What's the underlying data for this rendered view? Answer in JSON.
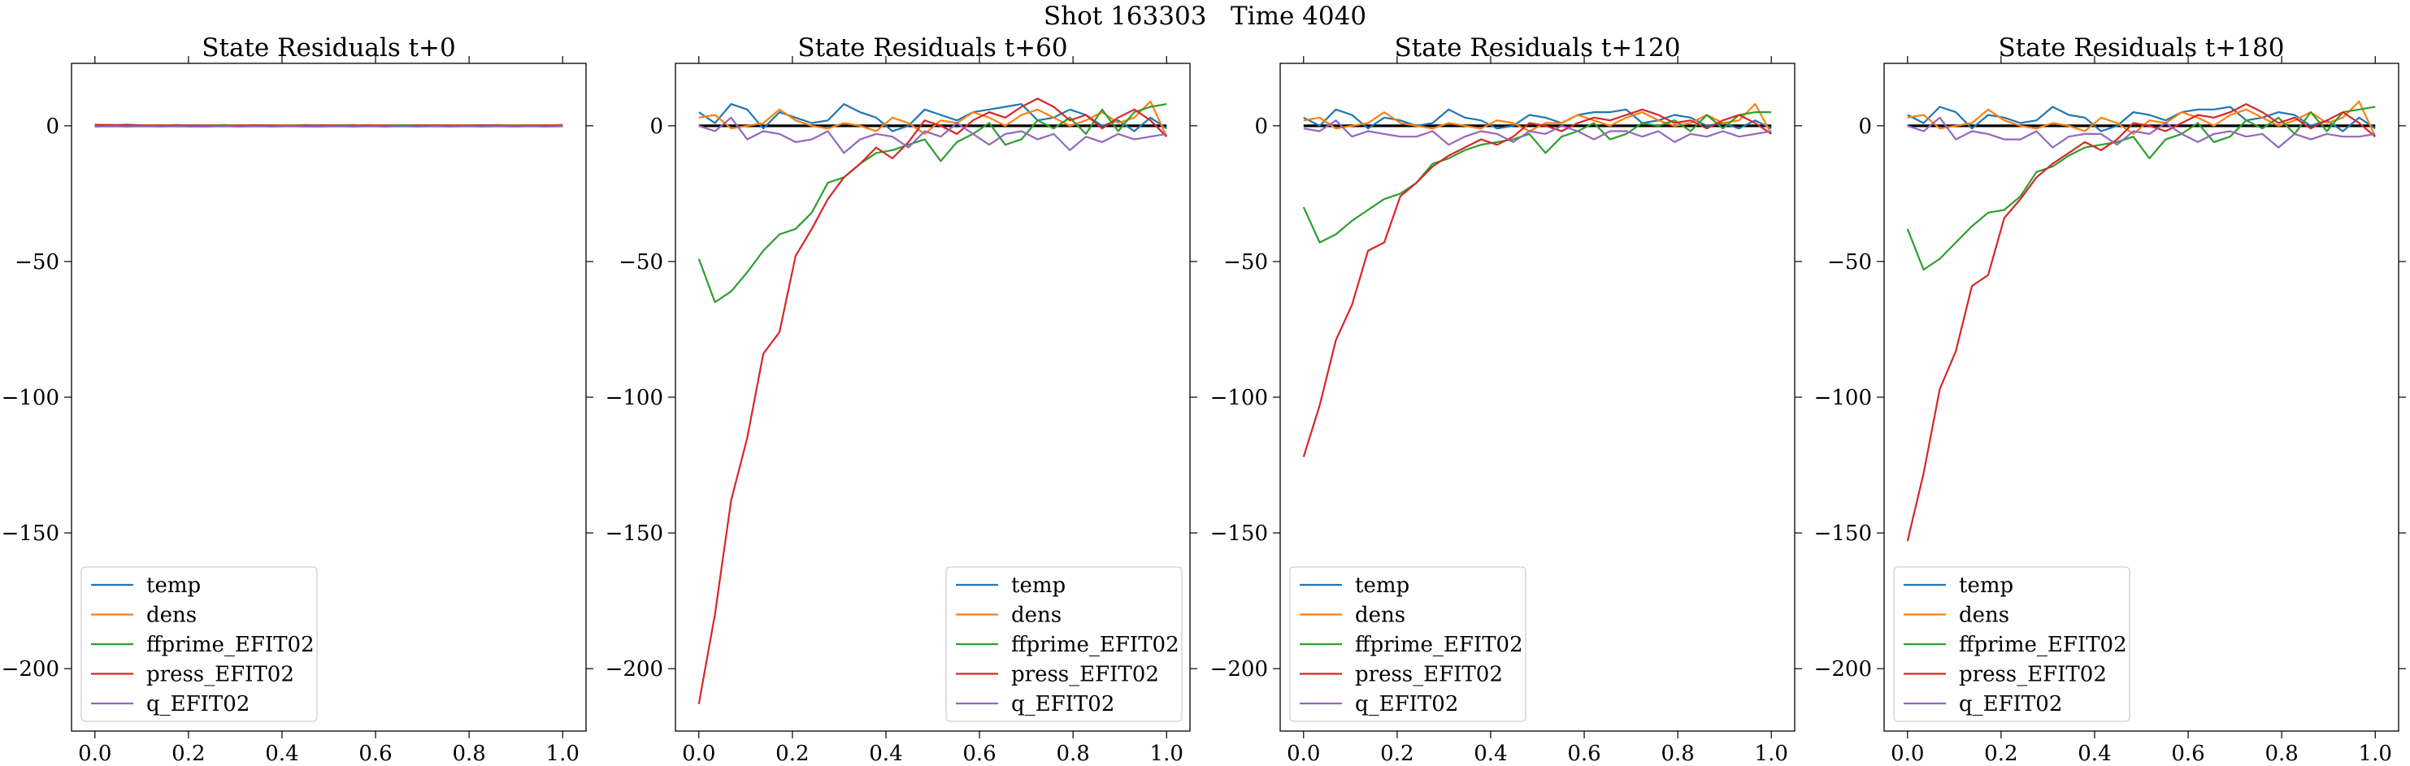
{
  "suptitle": "Shot 163303   Time 4040",
  "colors": {
    "temp": "#1f77b4",
    "dens": "#ff7f0e",
    "ffprime_EFIT02": "#2ca02c",
    "press_EFIT02": "#d62728",
    "q_EFIT02": "#9467bd",
    "zero_line": "#000000"
  },
  "chart_data": [
    {
      "type": "line",
      "title": "State Residuals t+0",
      "xlabel": "",
      "ylabel": "",
      "xlim": [
        -0.05,
        1.05
      ],
      "ylim": [
        -223,
        23
      ],
      "xticks": [
        "0.0",
        "0.2",
        "0.4",
        "0.6",
        "0.8",
        "1.0"
      ],
      "yticks": [
        "0",
        "−50",
        "−100",
        "−150",
        "−200"
      ],
      "legend_position": "lower-left",
      "x": [
        0.0,
        0.0345,
        0.069,
        0.1034,
        0.1379,
        0.1724,
        0.2069,
        0.2414,
        0.2759,
        0.3103,
        0.3448,
        0.3793,
        0.4138,
        0.4483,
        0.4828,
        0.5172,
        0.5517,
        0.5862,
        0.6207,
        0.6552,
        0.6897,
        0.7241,
        0.7586,
        0.7931,
        0.8276,
        0.8621,
        0.8966,
        0.931,
        0.9655,
        1.0
      ],
      "zero_line": true,
      "series": [
        {
          "name": "temp",
          "values": [
            0.3,
            0.2,
            0.4,
            0.2,
            0.1,
            0.3,
            0.2,
            0.2,
            0.3,
            0.1,
            0.2,
            0.2,
            0.1,
            0.3,
            0.2,
            0.2,
            0.3,
            0.2,
            0.1,
            0.2,
            0.3,
            0.2,
            0.2,
            0.1,
            0.2,
            0.3,
            0.2,
            0.2,
            0.1,
            0.3
          ]
        },
        {
          "name": "dens",
          "values": [
            0.2,
            0.3,
            0.1,
            0.2,
            0.3,
            0.2,
            0.1,
            0.2,
            0.2,
            0.3,
            0.1,
            0.2,
            0.3,
            0.2,
            0.2,
            0.1,
            0.2,
            0.3,
            0.2,
            0.1,
            0.2,
            0.2,
            0.3,
            0.2,
            0.1,
            0.2,
            0.2,
            0.3,
            0.2,
            0.4
          ]
        },
        {
          "name": "ffprime_EFIT02",
          "values": [
            0.0,
            0.1,
            0.0,
            0.1,
            0.0,
            0.1,
            0.0,
            0.0,
            0.1,
            0.0,
            0.1,
            0.0,
            0.0,
            0.1,
            0.0,
            0.0,
            0.1,
            0.0,
            0.0,
            0.1,
            0.0,
            0.1,
            0.0,
            0.0,
            0.1,
            0.0,
            0.0,
            0.1,
            0.0,
            0.1
          ]
        },
        {
          "name": "press_EFIT02",
          "values": [
            0.4,
            0.3,
            0.2,
            0.1,
            0.0,
            0.1,
            0.0,
            0.0,
            -0.1,
            0.0,
            0.1,
            0.0,
            -0.1,
            0.0,
            0.1,
            0.0,
            0.0,
            0.1,
            0.0,
            -0.1,
            0.0,
            0.1,
            0.0,
            0.0,
            0.1,
            0.0,
            -0.1,
            0.0,
            0.1,
            0.0
          ]
        },
        {
          "name": "q_EFIT02",
          "values": [
            -0.3,
            -0.2,
            -0.3,
            -0.2,
            -0.3,
            -0.2,
            -0.3,
            -0.3,
            -0.2,
            -0.3,
            -0.2,
            -0.3,
            -0.2,
            -0.3,
            -0.3,
            -0.2,
            -0.3,
            -0.2,
            -0.3,
            -0.2,
            -0.3,
            -0.2,
            -0.3,
            -0.2,
            -0.3,
            -0.2,
            -0.3,
            -0.2,
            -0.3,
            -0.2
          ]
        }
      ]
    },
    {
      "type": "line",
      "title": "State Residuals t+60",
      "xlabel": "",
      "ylabel": "",
      "xlim": [
        -0.05,
        1.05
      ],
      "ylim": [
        -223,
        23
      ],
      "xticks": [
        "0.0",
        "0.2",
        "0.4",
        "0.6",
        "0.8",
        "1.0"
      ],
      "yticks": [
        "0",
        "−50",
        "−100",
        "−150",
        "−200"
      ],
      "legend_position": "lower-right",
      "x": [
        0.0,
        0.0345,
        0.069,
        0.1034,
        0.1379,
        0.1724,
        0.2069,
        0.2414,
        0.2759,
        0.3103,
        0.3448,
        0.3793,
        0.4138,
        0.4483,
        0.4828,
        0.5172,
        0.5517,
        0.5862,
        0.6207,
        0.6552,
        0.6897,
        0.7241,
        0.7586,
        0.7931,
        0.8276,
        0.8621,
        0.8966,
        0.931,
        0.9655,
        1.0
      ],
      "zero_line": true,
      "series": [
        {
          "name": "temp",
          "values": [
            5,
            1,
            8,
            6,
            -1,
            5,
            3,
            1,
            2,
            8,
            5,
            3,
            -2,
            0,
            6,
            4,
            2,
            5,
            6,
            7,
            8,
            2,
            3,
            6,
            4,
            0,
            2,
            -2,
            3,
            -1
          ]
        },
        {
          "name": "dens",
          "values": [
            3,
            4,
            -1,
            0,
            1,
            6,
            2,
            0,
            -1,
            1,
            0,
            -2,
            3,
            1,
            -3,
            2,
            1,
            5,
            3,
            0,
            4,
            6,
            3,
            0,
            2,
            5,
            1,
            3,
            9,
            -4
          ]
        },
        {
          "name": "ffprime_EFIT02",
          "values": [
            -49,
            -65,
            -61,
            -54,
            -46,
            -40,
            -38,
            -32,
            -21,
            -19,
            -14,
            -10,
            -9,
            -7,
            -5,
            -13,
            -6,
            -3,
            1,
            -7,
            -5,
            2,
            -1,
            3,
            -3,
            6,
            -2,
            5,
            7,
            8
          ]
        },
        {
          "name": "press_EFIT02",
          "values": [
            -213,
            -180,
            -138,
            -115,
            -84,
            -76,
            -48,
            -38,
            -27,
            -19,
            -14,
            -8,
            -12,
            -6,
            2,
            0,
            -3,
            2,
            5,
            3,
            7,
            10,
            7,
            2,
            4,
            -1,
            3,
            6,
            2,
            -4
          ]
        },
        {
          "name": "q_EFIT02",
          "values": [
            0,
            -2,
            3,
            -5,
            -2,
            -3,
            -6,
            -5,
            -2,
            -10,
            -5,
            -3,
            -4,
            -8,
            -2,
            -4,
            1,
            -3,
            -7,
            -3,
            -2,
            -5,
            -3,
            -9,
            -4,
            -6,
            -3,
            -5,
            -4,
            -3
          ]
        }
      ]
    },
    {
      "type": "line",
      "title": "State Residuals t+120",
      "xlabel": "",
      "ylabel": "",
      "xlim": [
        -0.05,
        1.05
      ],
      "ylim": [
        -223,
        23
      ],
      "xticks": [
        "0.0",
        "0.2",
        "0.4",
        "0.6",
        "0.8",
        "1.0"
      ],
      "yticks": [
        "0",
        "−50",
        "−100",
        "−150",
        "−200"
      ],
      "legend_position": "lower-left",
      "x": [
        0.0,
        0.0345,
        0.069,
        0.1034,
        0.1379,
        0.1724,
        0.2069,
        0.2414,
        0.2759,
        0.3103,
        0.3448,
        0.3793,
        0.4138,
        0.4483,
        0.4828,
        0.5172,
        0.5517,
        0.5862,
        0.6207,
        0.6552,
        0.6897,
        0.7241,
        0.7586,
        0.7931,
        0.8276,
        0.8621,
        0.8966,
        0.931,
        0.9655,
        1.0
      ],
      "zero_line": true,
      "series": [
        {
          "name": "temp",
          "values": [
            3,
            0,
            6,
            4,
            -1,
            3,
            2,
            0,
            1,
            6,
            3,
            2,
            -1,
            0,
            4,
            3,
            1,
            4,
            5,
            5,
            6,
            1,
            2,
            4,
            3,
            0,
            1,
            -1,
            2,
            -1
          ]
        },
        {
          "name": "dens",
          "values": [
            2,
            3,
            -1,
            0,
            1,
            5,
            1,
            0,
            -1,
            1,
            0,
            -1,
            2,
            1,
            -2,
            1,
            1,
            4,
            2,
            0,
            3,
            5,
            2,
            0,
            1,
            4,
            1,
            2,
            8,
            -3
          ]
        },
        {
          "name": "ffprime_EFIT02",
          "values": [
            -30,
            -43,
            -40,
            -35,
            -31,
            -27,
            -25,
            -21,
            -14,
            -12,
            -9,
            -7,
            -6,
            -5,
            -3,
            -10,
            -4,
            -2,
            1,
            -5,
            -3,
            1,
            0,
            2,
            -2,
            4,
            -1,
            4,
            5,
            5
          ]
        },
        {
          "name": "press_EFIT02",
          "values": [
            -122,
            -103,
            -79,
            -66,
            -46,
            -43,
            -26,
            -21,
            -15,
            -11,
            -8,
            -5,
            -7,
            -4,
            1,
            0,
            -2,
            1,
            3,
            2,
            4,
            6,
            4,
            1,
            2,
            -1,
            2,
            4,
            1,
            -3
          ]
        },
        {
          "name": "q_EFIT02",
          "values": [
            -1,
            -2,
            2,
            -4,
            -2,
            -3,
            -4,
            -4,
            -2,
            -7,
            -4,
            -2,
            -3,
            -6,
            -2,
            -3,
            0,
            -2,
            -5,
            -2,
            -2,
            -4,
            -2,
            -6,
            -3,
            -4,
            -2,
            -4,
            -3,
            -2
          ]
        }
      ]
    },
    {
      "type": "line",
      "title": "State Residuals t+180",
      "xlabel": "",
      "ylabel": "",
      "xlim": [
        -0.05,
        1.05
      ],
      "ylim": [
        -223,
        23
      ],
      "xticks": [
        "0.0",
        "0.2",
        "0.4",
        "0.6",
        "0.8",
        "1.0"
      ],
      "yticks": [
        "0",
        "−50",
        "−100",
        "−150",
        "−200"
      ],
      "legend_position": "lower-left",
      "x": [
        0.0,
        0.0345,
        0.069,
        0.1034,
        0.1379,
        0.1724,
        0.2069,
        0.2414,
        0.2759,
        0.3103,
        0.3448,
        0.3793,
        0.4138,
        0.4483,
        0.4828,
        0.5172,
        0.5517,
        0.5862,
        0.6207,
        0.6552,
        0.6897,
        0.7241,
        0.7586,
        0.7931,
        0.8276,
        0.8621,
        0.8966,
        0.931,
        0.9655,
        1.0
      ],
      "zero_line": true,
      "series": [
        {
          "name": "temp",
          "values": [
            4,
            1,
            7,
            5,
            -1,
            4,
            3,
            1,
            2,
            7,
            4,
            3,
            -2,
            0,
            5,
            4,
            2,
            5,
            6,
            6,
            7,
            2,
            3,
            5,
            4,
            0,
            2,
            -2,
            3,
            -1
          ]
        },
        {
          "name": "dens",
          "values": [
            3,
            4,
            -1,
            0,
            1,
            6,
            2,
            0,
            -1,
            1,
            0,
            -2,
            3,
            1,
            -3,
            2,
            1,
            5,
            3,
            0,
            4,
            6,
            3,
            0,
            2,
            5,
            1,
            3,
            9,
            -4
          ]
        },
        {
          "name": "ffprime_EFIT02",
          "values": [
            -38,
            -53,
            -49,
            -43,
            -37,
            -32,
            -31,
            -26,
            -17,
            -15,
            -11,
            -8,
            -7,
            -6,
            -4,
            -12,
            -5,
            -3,
            1,
            -6,
            -4,
            2,
            -1,
            3,
            -3,
            5,
            -2,
            5,
            6,
            7
          ]
        },
        {
          "name": "press_EFIT02",
          "values": [
            -153,
            -128,
            -97,
            -83,
            -59,
            -55,
            -34,
            -27,
            -19,
            -14,
            -10,
            -6,
            -9,
            -5,
            1,
            0,
            -2,
            1,
            4,
            3,
            5,
            8,
            5,
            1,
            3,
            -1,
            2,
            5,
            1,
            -4
          ]
        },
        {
          "name": "q_EFIT02",
          "values": [
            0,
            -2,
            3,
            -5,
            -2,
            -3,
            -5,
            -5,
            -2,
            -8,
            -4,
            -3,
            -3,
            -7,
            -2,
            -3,
            1,
            -3,
            -6,
            -3,
            -2,
            -4,
            -3,
            -8,
            -3,
            -5,
            -3,
            -4,
            -4,
            -3
          ]
        }
      ]
    }
  ]
}
